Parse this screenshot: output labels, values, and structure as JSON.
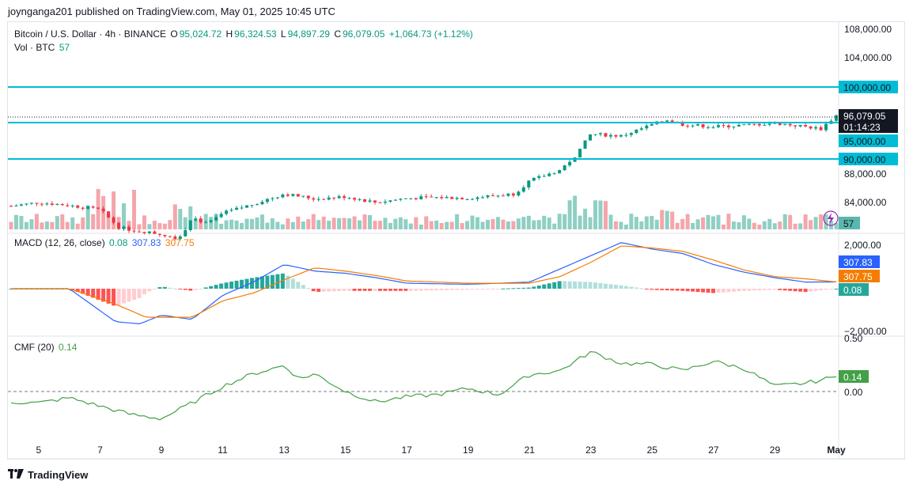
{
  "header": {
    "published": "joynganga201 published on TradingView.com, May 01, 2025 10:45 UTC"
  },
  "legend": {
    "symbol": "Bitcoin / U.S. Dollar · 4h · BINANCE",
    "o_label": "O",
    "o": "95,024.72",
    "h_label": "H",
    "h": "96,324.53",
    "l_label": "L",
    "l": "94,897.29",
    "c_label": "C",
    "c": "96,079.05",
    "change": "+1,064.73 (+1.12%)",
    "vol_label": "Vol · BTC",
    "vol": "57"
  },
  "macd_legend": {
    "title": "MACD (12, 26, close)",
    "hist": "0.08",
    "macd": "307.83",
    "signal": "307.75"
  },
  "cmf_legend": {
    "title": "CMF (20)",
    "value": "0.14"
  },
  "price_axis": {
    "ticks": [
      "108,000.00",
      "104,000.00",
      "88,000.00",
      "84,000.00"
    ],
    "tick_values": [
      108000,
      104000,
      88000,
      84000
    ],
    "levels": [
      "100,000.00",
      "95,000.00",
      "90,000.00"
    ],
    "level_values": [
      100000,
      95000,
      90000
    ],
    "last_price": "96,079.05",
    "countdown": "01:14:23",
    "vol_badge": "57"
  },
  "macd_axis": {
    "ticks": [
      "2,000.00",
      "−2,000.00"
    ],
    "badges": [
      "307.83",
      "307.75",
      "0.08"
    ]
  },
  "cmf_axis": {
    "ticks": [
      "0.50",
      "0.00"
    ],
    "badge": "0.14"
  },
  "x_axis": {
    "labels": [
      "5",
      "7",
      "9",
      "11",
      "13",
      "15",
      "17",
      "19",
      "21",
      "23",
      "25",
      "27",
      "29",
      "May"
    ]
  },
  "footer": {
    "brand": "TradingView"
  },
  "colors": {
    "up": "#089981",
    "down": "#f23645",
    "level": "#00bcd4",
    "macd": "#2962ff",
    "signal": "#f57c00",
    "cmf": "#43a047"
  },
  "chart_data": {
    "type": "candlestick",
    "title": "Bitcoin / U.S. Dollar · 4h · BINANCE",
    "x_range": [
      "Apr 4",
      "May 1"
    ],
    "y_range": [
      82000,
      110000
    ],
    "horizontal_levels": [
      100000,
      95000,
      90000
    ],
    "close_anchors": [
      {
        "day": 4.1,
        "close": 83500
      },
      {
        "day": 5,
        "close": 84000
      },
      {
        "day": 6,
        "close": 83600
      },
      {
        "day": 7,
        "close": 83000
      },
      {
        "day": 7.6,
        "close": 80600
      },
      {
        "day": 8,
        "close": 80200
      },
      {
        "day": 9,
        "close": 79600
      },
      {
        "day": 9.6,
        "close": 79000
      },
      {
        "day": 10,
        "close": 82000
      },
      {
        "day": 10.5,
        "close": 81000
      },
      {
        "day": 11,
        "close": 82500
      },
      {
        "day": 12,
        "close": 83800
      },
      {
        "day": 13,
        "close": 85200
      },
      {
        "day": 14,
        "close": 84500
      },
      {
        "day": 15,
        "close": 84800
      },
      {
        "day": 16,
        "close": 84000
      },
      {
        "day": 17,
        "close": 84600
      },
      {
        "day": 18,
        "close": 84700
      },
      {
        "day": 19,
        "close": 84600
      },
      {
        "day": 20,
        "close": 85000
      },
      {
        "day": 20.5,
        "close": 85200
      },
      {
        "day": 21,
        "close": 87000
      },
      {
        "day": 22,
        "close": 88500
      },
      {
        "day": 22.5,
        "close": 90500
      },
      {
        "day": 23,
        "close": 93500
      },
      {
        "day": 24,
        "close": 93200
      },
      {
        "day": 25,
        "close": 94800
      },
      {
        "day": 25.5,
        "close": 95500
      },
      {
        "day": 26,
        "close": 94800
      },
      {
        "day": 27,
        "close": 94500
      },
      {
        "day": 28,
        "close": 94700
      },
      {
        "day": 29,
        "close": 95000
      },
      {
        "day": 30,
        "close": 94500
      },
      {
        "day": 30.5,
        "close": 94200
      },
      {
        "day": 31,
        "close": 96079
      }
    ],
    "volume_badge": 57,
    "macd": {
      "params": "12, 26, close",
      "macd_last": 307.83,
      "signal_last": 307.75,
      "hist_last": 0.08,
      "y_range": [
        -2000,
        2000
      ],
      "macd_anchors": [
        {
          "day": 4.1,
          "v": 0
        },
        {
          "day": 6,
          "v": 0
        },
        {
          "day": 7.5,
          "v": -1500
        },
        {
          "day": 8.3,
          "v": -1600
        },
        {
          "day": 9,
          "v": -1200
        },
        {
          "day": 10,
          "v": -1400
        },
        {
          "day": 11,
          "v": -300
        },
        {
          "day": 12,
          "v": 300
        },
        {
          "day": 13,
          "v": 1100
        },
        {
          "day": 14,
          "v": 800
        },
        {
          "day": 15,
          "v": 700
        },
        {
          "day": 16,
          "v": 500
        },
        {
          "day": 17,
          "v": 250
        },
        {
          "day": 19,
          "v": 200
        },
        {
          "day": 21,
          "v": 300
        },
        {
          "day": 22,
          "v": 900
        },
        {
          "day": 23,
          "v": 1500
        },
        {
          "day": 24,
          "v": 2100
        },
        {
          "day": 25,
          "v": 1800
        },
        {
          "day": 26,
          "v": 1600
        },
        {
          "day": 27,
          "v": 1100
        },
        {
          "day": 28,
          "v": 750
        },
        {
          "day": 29,
          "v": 500
        },
        {
          "day": 30,
          "v": 300
        },
        {
          "day": 31,
          "v": 308
        }
      ],
      "signal_anchors": [
        {
          "day": 4.1,
          "v": 0
        },
        {
          "day": 6,
          "v": 0
        },
        {
          "day": 7.5,
          "v": -700
        },
        {
          "day": 8.5,
          "v": -1300
        },
        {
          "day": 10,
          "v": -1300
        },
        {
          "day": 11,
          "v": -550
        },
        {
          "day": 12,
          "v": -200
        },
        {
          "day": 13,
          "v": 400
        },
        {
          "day": 14,
          "v": 950
        },
        {
          "day": 15,
          "v": 800
        },
        {
          "day": 16,
          "v": 600
        },
        {
          "day": 17,
          "v": 350
        },
        {
          "day": 19,
          "v": 250
        },
        {
          "day": 21,
          "v": 250
        },
        {
          "day": 22,
          "v": 550
        },
        {
          "day": 23,
          "v": 1200
        },
        {
          "day": 24,
          "v": 1950
        },
        {
          "day": 25,
          "v": 1850
        },
        {
          "day": 26,
          "v": 1700
        },
        {
          "day": 27,
          "v": 1300
        },
        {
          "day": 28,
          "v": 850
        },
        {
          "day": 29,
          "v": 550
        },
        {
          "day": 30,
          "v": 450
        },
        {
          "day": 31,
          "v": 308
        }
      ]
    },
    "cmf": {
      "period": 20,
      "last": 0.14,
      "y_range": [
        -0.3,
        0.5
      ],
      "anchors": [
        {
          "day": 4.1,
          "v": -0.1
        },
        {
          "day": 5,
          "v": -0.11
        },
        {
          "day": 6,
          "v": -0.06
        },
        {
          "day": 7,
          "v": -0.14
        },
        {
          "day": 8,
          "v": -0.22
        },
        {
          "day": 9,
          "v": -0.26
        },
        {
          "day": 10,
          "v": -0.11
        },
        {
          "day": 11,
          "v": 0.05
        },
        {
          "day": 12,
          "v": 0.17
        },
        {
          "day": 13,
          "v": 0.25
        },
        {
          "day": 13.5,
          "v": 0.12
        },
        {
          "day": 14,
          "v": 0.17
        },
        {
          "day": 15,
          "v": 0.0
        },
        {
          "day": 16,
          "v": -0.1
        },
        {
          "day": 17,
          "v": -0.05
        },
        {
          "day": 18,
          "v": -0.03
        },
        {
          "day": 19,
          "v": 0.03
        },
        {
          "day": 20,
          "v": -0.03
        },
        {
          "day": 21,
          "v": 0.16
        },
        {
          "day": 22,
          "v": 0.2
        },
        {
          "day": 23,
          "v": 0.38
        },
        {
          "day": 24,
          "v": 0.27
        },
        {
          "day": 25,
          "v": 0.26
        },
        {
          "day": 26,
          "v": 0.2
        },
        {
          "day": 27,
          "v": 0.29
        },
        {
          "day": 28,
          "v": 0.22
        },
        {
          "day": 29,
          "v": 0.05
        },
        {
          "day": 30,
          "v": 0.08
        },
        {
          "day": 31,
          "v": 0.14
        }
      ]
    }
  }
}
